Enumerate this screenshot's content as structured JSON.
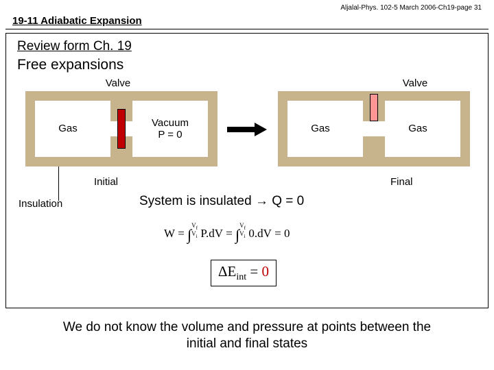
{
  "header": {
    "right": "Aljalal-Phys. 102-5 March 2006-Ch19-page 31"
  },
  "section": "19-11 Adiabatic Expansion",
  "review": "Review form Ch. 19",
  "subtitle": "Free expansions",
  "colors": {
    "wall": "#c8b48c",
    "valve_closed": "#c00000",
    "valve_open": "#ff9696",
    "zero": "#c00000"
  },
  "labels": {
    "valve": "Valve",
    "gas": "Gas",
    "vacuum_l1": "Vacuum",
    "vacuum_l2": "P = 0",
    "initial": "Initial",
    "final": "Final",
    "insulation": "Insulation",
    "system": "System is insulated → Q = 0"
  },
  "eq_work": "W = ∫ P dV = ∫ 0 dV = 0",
  "eq_work_limits": {
    "lo": "V",
    "losub": "i",
    "hi": "V",
    "hisub": "f"
  },
  "eint": {
    "delta": "ΔE",
    "sub": "int",
    "eq": " = ",
    "zero": "0"
  },
  "bottom": "We do not know the volume and pressure at points between the\ninitial and final states"
}
